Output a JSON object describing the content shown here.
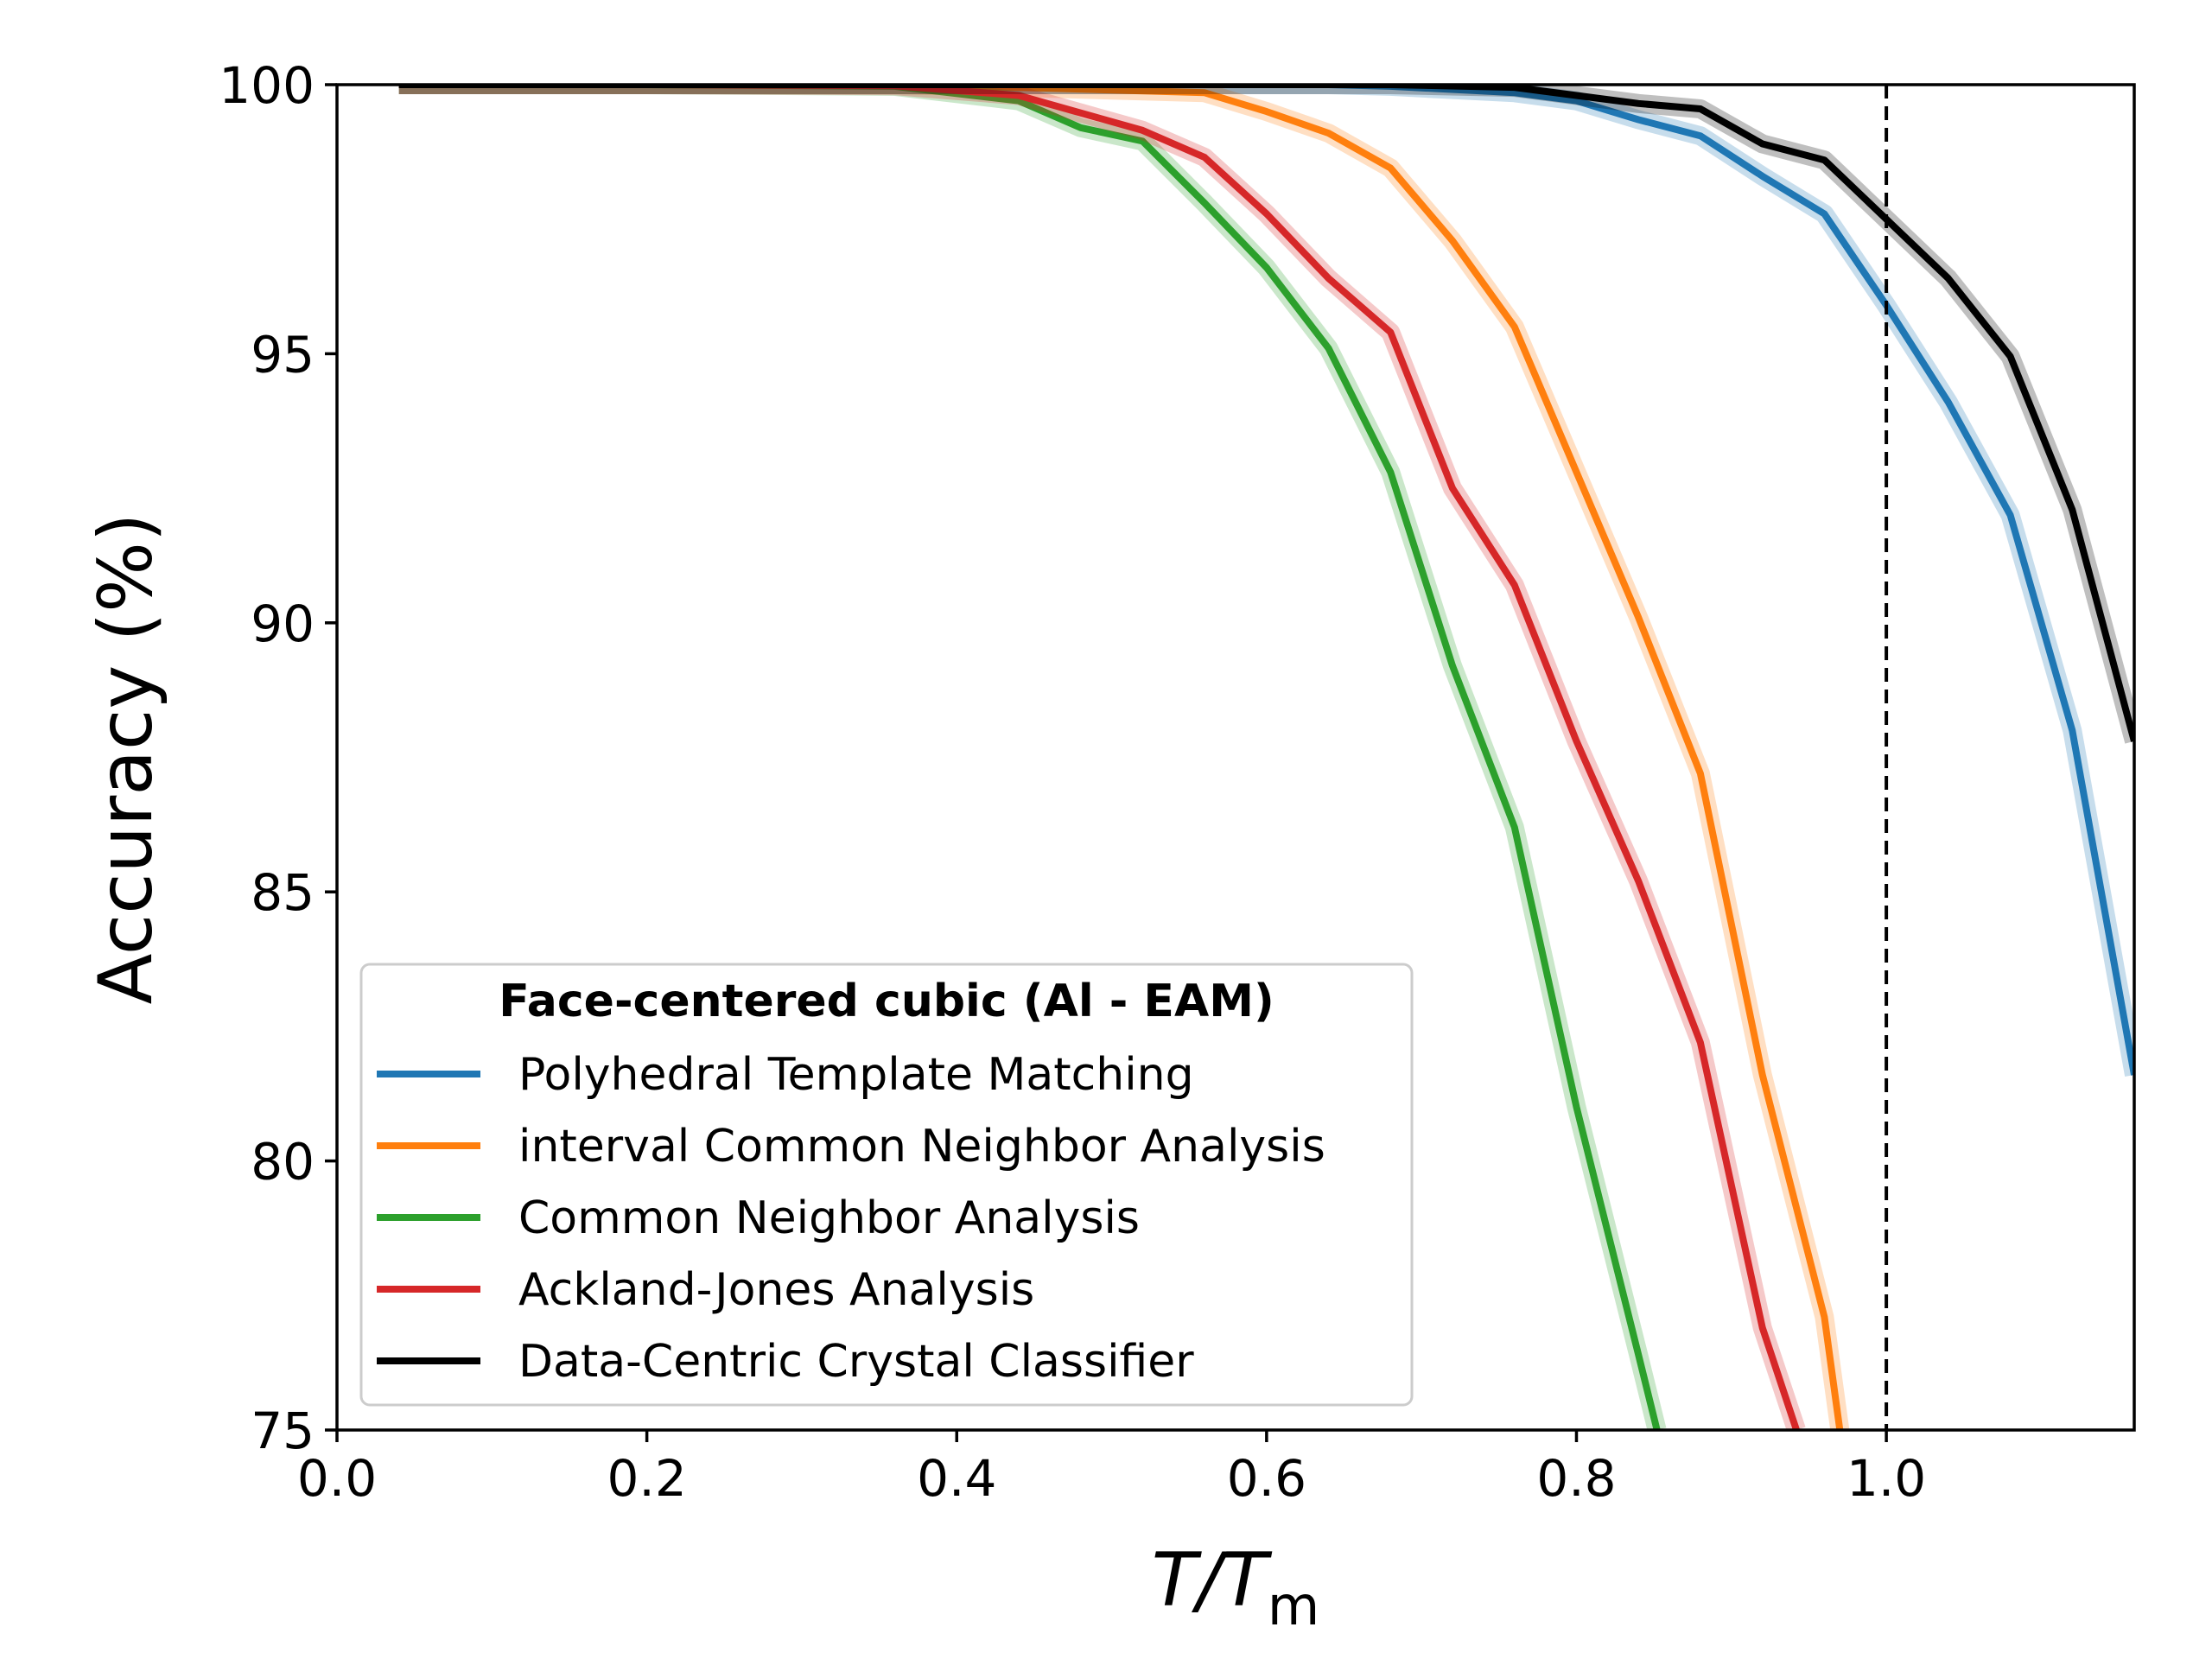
{
  "chart_data": {
    "type": "line",
    "xlabel": "T/T",
    "xlabel_subscript": "m",
    "ylabel": "Accuracy (%)",
    "xlim": [
      0.0,
      1.16
    ],
    "ylim": [
      75,
      100
    ],
    "x_ticks": [
      0.0,
      0.2,
      0.4,
      0.6,
      0.8,
      1.0
    ],
    "x_tick_labels": [
      "0.0",
      "0.2",
      "0.4",
      "0.6",
      "0.8",
      "1.0"
    ],
    "y_ticks": [
      75,
      80,
      85,
      90,
      95,
      100
    ],
    "y_tick_labels": [
      "75",
      "80",
      "85",
      "90",
      "95",
      "100"
    ],
    "grid": false,
    "reference_line": {
      "x": 1.0,
      "style": "dashed",
      "color": "#000000"
    },
    "legend": {
      "title": "Face-centered cubic (Al - EAM)",
      "placement": "lower-left"
    },
    "series": [
      {
        "name": "Polyhedral Template Matching",
        "color": "#1f77b4",
        "x": [
          0.04,
          0.2,
          0.36,
          0.52,
          0.64,
          0.68,
          0.76,
          0.8,
          0.84,
          0.88,
          0.92,
          0.96,
          1.0,
          1.04,
          1.08,
          1.12,
          1.16
        ],
        "y": [
          100,
          100,
          100,
          100,
          100,
          99.97,
          99.85,
          99.7,
          99.35,
          99.05,
          98.3,
          97.6,
          95.9,
          94.1,
          92.0,
          88.0,
          81.6
        ]
      },
      {
        "name": "interval Common Neighbor Analysis",
        "color": "#ff7f0e",
        "x": [
          0.04,
          0.2,
          0.36,
          0.44,
          0.56,
          0.6,
          0.64,
          0.68,
          0.72,
          0.76,
          0.8,
          0.84,
          0.88,
          0.92,
          0.96,
          0.97
        ],
        "y": [
          100,
          100,
          100,
          99.95,
          99.85,
          99.5,
          99.1,
          98.45,
          97.1,
          95.5,
          92.8,
          90.1,
          87.2,
          81.6,
          77.1,
          75
        ]
      },
      {
        "name": "Common Neighbor Analysis",
        "color": "#2ca02c",
        "x": [
          0.04,
          0.2,
          0.36,
          0.44,
          0.48,
          0.52,
          0.56,
          0.6,
          0.64,
          0.68,
          0.72,
          0.76,
          0.8,
          0.84,
          0.852
        ],
        "y": [
          100,
          100,
          99.97,
          99.7,
          99.2,
          98.95,
          97.8,
          96.6,
          95.1,
          92.8,
          89.2,
          86.2,
          81.0,
          76.4,
          75
        ]
      },
      {
        "name": "Ackland-Jones Analysis",
        "color": "#d62728",
        "x": [
          0.04,
          0.2,
          0.36,
          0.44,
          0.52,
          0.56,
          0.6,
          0.64,
          0.68,
          0.72,
          0.76,
          0.8,
          0.84,
          0.88,
          0.92,
          0.942
        ],
        "y": [
          100,
          100,
          99.98,
          99.8,
          99.15,
          98.65,
          97.6,
          96.4,
          95.4,
          92.5,
          90.7,
          87.8,
          85.2,
          82.2,
          76.9,
          75
        ]
      },
      {
        "name": "Data-Centric Crystal Classifier",
        "color": "#000000",
        "x": [
          0.04,
          0.2,
          0.36,
          0.52,
          0.68,
          0.76,
          0.8,
          0.84,
          0.88,
          0.92,
          0.96,
          1.0,
          1.04,
          1.08,
          1.12,
          1.16
        ],
        "y": [
          100,
          100,
          100,
          100,
          100,
          99.95,
          99.8,
          99.65,
          99.55,
          98.9,
          98.6,
          97.5,
          96.4,
          94.95,
          92.1,
          87.8
        ]
      }
    ]
  }
}
